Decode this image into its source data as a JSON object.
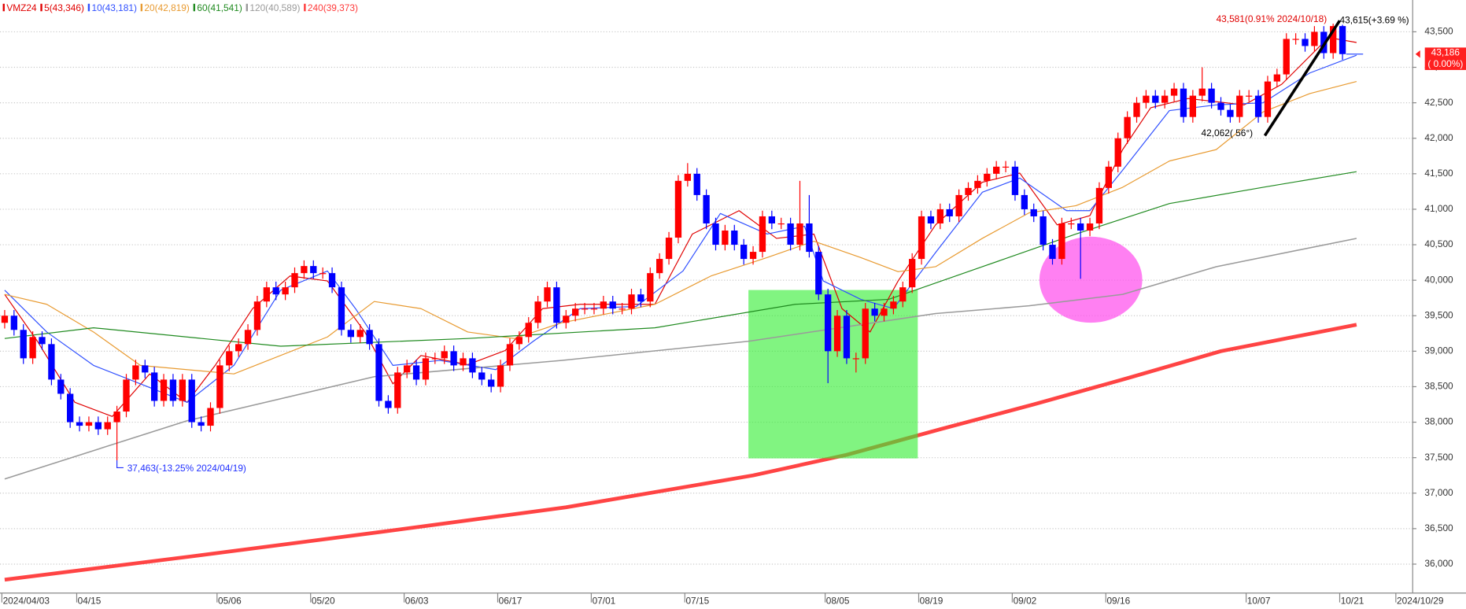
{
  "chart_data": {
    "type": "candlestick",
    "title": "VMZ24",
    "title_color": "#e00000",
    "up_color": "#ff0000",
    "down_color": "#0000ff",
    "xlim": [
      -0.5,
      150.5
    ],
    "ylim": [
      35592,
      43948
    ],
    "grid": true,
    "xticks": [
      {
        "value": 0,
        "label": "2024/04/03"
      },
      {
        "value": 8,
        "label": "04/15"
      },
      {
        "value": 23,
        "label": "05/06"
      },
      {
        "value": 33,
        "label": "05/20"
      },
      {
        "value": 43,
        "label": "06/03"
      },
      {
        "value": 53,
        "label": "06/17"
      },
      {
        "value": 63,
        "label": "07/01"
      },
      {
        "value": 73,
        "label": "07/15"
      },
      {
        "value": 88,
        "label": "08/05"
      },
      {
        "value": 98,
        "label": "08/19"
      },
      {
        "value": 108,
        "label": "09/02"
      },
      {
        "value": 118,
        "label": "09/16"
      },
      {
        "value": 133,
        "label": "10/07"
      },
      {
        "value": 143,
        "label": "10/21"
      },
      {
        "value": 149,
        "label": "2024/10/29"
      }
    ],
    "yticks": [
      {
        "value": 36000,
        "label": "36,000"
      },
      {
        "value": 36500,
        "label": "36,500"
      },
      {
        "value": 37000,
        "label": "37,000"
      },
      {
        "value": 37500,
        "label": "37,500"
      },
      {
        "value": 38000,
        "label": "38,000"
      },
      {
        "value": 38500,
        "label": "38,500"
      },
      {
        "value": 39000,
        "label": "39,000"
      },
      {
        "value": 39500,
        "label": "39,500"
      },
      {
        "value": 40000,
        "label": "40,000"
      },
      {
        "value": 40500,
        "label": "40,500"
      },
      {
        "value": 41000,
        "label": "41,000"
      },
      {
        "value": 41500,
        "label": "41,500"
      },
      {
        "value": 42000,
        "label": "42,000"
      },
      {
        "value": 42500,
        "label": "42,500"
      },
      {
        "value": 43000,
        "label": "43,000"
      },
      {
        "value": 43500,
        "label": "43,500"
      }
    ],
    "open": [
      39400,
      39500,
      39300,
      38900,
      39200,
      39100,
      38600,
      38400,
      38000,
      37950,
      38000,
      37900,
      38000,
      38150,
      38600,
      38800,
      38700,
      38300,
      38600,
      38300,
      38600,
      38000,
      37950,
      38200,
      38800,
      39000,
      39100,
      39300,
      39700,
      39900,
      39800,
      39900,
      40100,
      40200,
      40100,
      40100,
      39900,
      39300,
      39200,
      39300,
      39100,
      38300,
      38200,
      38700,
      38800,
      38600,
      38900,
      38900,
      39000,
      38800,
      38900,
      38700,
      38600,
      38500,
      38800,
      39100,
      39200,
      39400,
      39700,
      39900,
      39400,
      39500,
      39600,
      39600,
      39600,
      39700,
      39600,
      39600,
      39800,
      39700,
      40100,
      40300,
      40600,
      41400,
      41500,
      41200,
      40800,
      40500,
      40700,
      40500,
      40300,
      40400,
      40900,
      40800,
      40800,
      40500,
      40800,
      40400,
      39800,
      39000,
      39500,
      38900,
      38900,
      39600,
      39500,
      39600,
      39700,
      39900,
      40300,
      40900,
      40800,
      41000,
      40900,
      41200,
      41300,
      41400,
      41500,
      41600,
      41600,
      41200,
      41000,
      40900,
      40500,
      40300,
      40800,
      40800,
      40700,
      40800,
      41300,
      41600,
      42000,
      42300,
      42500,
      42600,
      42500,
      42600,
      42700,
      42300,
      42600,
      42700,
      42500,
      42400,
      42300,
      42600,
      42600,
      42300,
      42800,
      42900,
      43400,
      43400,
      43300,
      43500,
      43200,
      43581
    ],
    "high": [
      39580,
      39580,
      39380,
      39280,
      39280,
      39180,
      38680,
      38480,
      38080,
      38080,
      38080,
      38080,
      38230,
      38680,
      38880,
      38880,
      38780,
      38680,
      38680,
      38680,
      38680,
      38080,
      38280,
      38880,
      39080,
      39180,
      39380,
      39780,
      39980,
      39980,
      39980,
      40180,
      40280,
      40280,
      40180,
      40180,
      39980,
      39380,
      39380,
      39380,
      39180,
      38380,
      38780,
      38880,
      38880,
      38980,
      38980,
      39080,
      39080,
      38980,
      38980,
      38780,
      38680,
      38880,
      39180,
      39280,
      39480,
      39780,
      39980,
      39980,
      39580,
      39680,
      39680,
      39680,
      39780,
      39780,
      39680,
      39880,
      39880,
      40180,
      40380,
      40680,
      41480,
      41650,
      41580,
      41280,
      40880,
      40780,
      40780,
      40580,
      40480,
      40980,
      40980,
      40880,
      40880,
      41400,
      41200,
      40480,
      39880,
      39580,
      39580,
      38980,
      39680,
      39680,
      39680,
      39780,
      39980,
      40380,
      40980,
      40980,
      41080,
      41080,
      41280,
      41380,
      41480,
      41580,
      41680,
      41680,
      41680,
      41280,
      41080,
      40980,
      40580,
      40880,
      40880,
      40880,
      40880,
      41380,
      41680,
      42080,
      42380,
      42580,
      42680,
      42680,
      42680,
      42780,
      42780,
      42680,
      43000,
      42780,
      42580,
      42480,
      42680,
      42680,
      42680,
      42880,
      42980,
      43480,
      43480,
      43480,
      43580,
      43580,
      43615,
      43600
    ],
    "low": [
      39320,
      39220,
      38820,
      38820,
      39020,
      38520,
      38320,
      37920,
      37870,
      37870,
      37820,
      37820,
      37463,
      38070,
      38520,
      38620,
      38220,
      38220,
      38220,
      38220,
      37920,
      37870,
      37870,
      38120,
      38720,
      38920,
      39020,
      39220,
      39620,
      39720,
      39720,
      39820,
      40020,
      40020,
      40020,
      39820,
      39220,
      39120,
      39120,
      39020,
      38220,
      38120,
      38120,
      38620,
      38520,
      38520,
      38820,
      38820,
      38720,
      38720,
      38620,
      38520,
      38420,
      38420,
      38720,
      39020,
      39120,
      39320,
      39620,
      39320,
      39320,
      39420,
      39520,
      39520,
      39520,
      39520,
      39520,
      39520,
      39620,
      39620,
      40020,
      40220,
      40520,
      41320,
      41120,
      40720,
      40420,
      40420,
      40420,
      40220,
      40220,
      40320,
      40720,
      40720,
      40420,
      40420,
      40320,
      39720,
      38550,
      38920,
      38820,
      38700,
      38820,
      39420,
      39420,
      39520,
      39620,
      39820,
      40220,
      40720,
      40720,
      40820,
      40820,
      41120,
      41220,
      41320,
      41420,
      41520,
      41120,
      40920,
      40820,
      40420,
      40220,
      40220,
      40720,
      40020,
      40620,
      40720,
      41220,
      41520,
      41920,
      42220,
      42420,
      42420,
      42420,
      42520,
      42220,
      42220,
      42520,
      42420,
      42320,
      42220,
      42220,
      42520,
      42220,
      42220,
      42720,
      42820,
      43320,
      43220,
      43220,
      43120,
      43120,
      43106
    ],
    "close": [
      39500,
      39300,
      38900,
      39200,
      39100,
      38600,
      38400,
      38000,
      37950,
      38000,
      37900,
      38000,
      38150,
      38600,
      38800,
      38700,
      38300,
      38600,
      38300,
      38600,
      38000,
      37950,
      38200,
      38800,
      39000,
      39100,
      39300,
      39700,
      39900,
      39800,
      39900,
      40100,
      40200,
      40100,
      40100,
      39900,
      39300,
      39200,
      39300,
      39100,
      38300,
      38200,
      38700,
      38800,
      38600,
      38900,
      38900,
      39000,
      38800,
      38900,
      38700,
      38600,
      38500,
      38800,
      39100,
      39200,
      39400,
      39700,
      39900,
      39400,
      39500,
      39600,
      39600,
      39600,
      39700,
      39600,
      39600,
      39800,
      39700,
      40100,
      40300,
      40600,
      41400,
      41500,
      41200,
      40800,
      40500,
      40700,
      40500,
      40300,
      40400,
      40900,
      40800,
      40800,
      40500,
      40800,
      40400,
      39800,
      39000,
      39500,
      38900,
      38900,
      39600,
      39500,
      39600,
      39700,
      39900,
      40300,
      40900,
      40800,
      41000,
      40900,
      41200,
      41300,
      41400,
      41500,
      41600,
      41600,
      41200,
      41000,
      40900,
      40500,
      40300,
      40800,
      40800,
      40700,
      40800,
      41300,
      41600,
      42000,
      42300,
      42500,
      42600,
      42500,
      42600,
      42700,
      42300,
      42600,
      42700,
      42500,
      42400,
      42300,
      42600,
      42600,
      42300,
      42800,
      42900,
      43400,
      43400,
      43300,
      43500,
      43200,
      43581,
      43186
    ],
    "series": [
      {
        "name": "5(43,346)",
        "color": "#e00000",
        "width": 1,
        "x": [
          0,
          3.5,
          7.5,
          11.5,
          15.5,
          19.5,
          22.5,
          26.5,
          30.5,
          34.5,
          38.5,
          41.5,
          44.5,
          49.5,
          53.5,
          57.5,
          61.5,
          69.5,
          73.5,
          78.5,
          82.5,
          86.5,
          89.5,
          92.5,
          95.5,
          99.5,
          104.5,
          108.5,
          112.5,
          116,
          119.5,
          122.5,
          126.5,
          132.5,
          136.5,
          141.5,
          144.5
        ],
        "values": [
          39800,
          39140,
          38280,
          38080,
          38680,
          38280,
          38800,
          39600,
          40060,
          39990,
          39270,
          38540,
          38940,
          38810,
          39010,
          39600,
          39660,
          39660,
          40650,
          40980,
          40590,
          40650,
          39600,
          39270,
          39990,
          40780,
          41380,
          41510,
          40780,
          40910,
          41840,
          42430,
          42560,
          42470,
          42760,
          43420,
          43350
        ]
      },
      {
        "name": "10(43,181)",
        "color": "#3050ff",
        "width": 1,
        "x": [
          0,
          4.5,
          9.5,
          14.5,
          19.5,
          24.5,
          29.5,
          34.5,
          37.5,
          41.5,
          46.5,
          52.5,
          56.5,
          61.5,
          67.5,
          72.5,
          76.5,
          81.5,
          85.5,
          87.5,
          91.5,
          95,
          99.5,
          104.5,
          108.5,
          113.5,
          116,
          119.5,
          124.5,
          129.5,
          134.5,
          139.5,
          144.5
        ],
        "values": [
          39860,
          39270,
          38800,
          38540,
          38280,
          38800,
          39860,
          40130,
          39600,
          38800,
          38870,
          38740,
          39140,
          39600,
          39630,
          40130,
          40940,
          40650,
          40760,
          39990,
          39730,
          39600,
          40390,
          41240,
          41440,
          40980,
          40980,
          41550,
          42390,
          42470,
          42500,
          42920,
          43170
        ]
      },
      {
        "name": "20(42,819)",
        "color": "#e89a30",
        "width": 1,
        "x": [
          0,
          4.5,
          9.5,
          14.5,
          24.5,
          34.5,
          39.5,
          44.5,
          49.5,
          54.5,
          59.5,
          64.5,
          69.5,
          75.5,
          81.5,
          86.5,
          91.5,
          95.5,
          99.5,
          104.5,
          109.5,
          114.5,
          119.5,
          124.5,
          129.5,
          134.5,
          139.5,
          144.5
        ],
        "values": [
          39800,
          39660,
          39270,
          38800,
          38680,
          39200,
          39700,
          39600,
          39270,
          39180,
          39400,
          39530,
          39660,
          40060,
          40320,
          40550,
          40320,
          40120,
          40190,
          40590,
          40950,
          41050,
          41310,
          41680,
          41840,
          42370,
          42630,
          42800
        ]
      },
      {
        "name": "60(41,541)",
        "color": "#1f8a1f",
        "width": 1,
        "x": [
          0,
          9.5,
          29.5,
          49.5,
          69.5,
          84.5,
          94.5,
          104.5,
          114.5,
          124.5,
          134.5,
          144.5
        ],
        "values": [
          39180,
          39330,
          39070,
          39180,
          39330,
          39660,
          39730,
          40190,
          40650,
          41080,
          41310,
          41530
        ]
      },
      {
        "name": "120(40,589)",
        "color": "#9a9a9a",
        "width": 1.3,
        "x": [
          0,
          19.5,
          39.5,
          59.5,
          79.5,
          99.5,
          109.5,
          119.5,
          129.5,
          144.5
        ],
        "values": [
          37200,
          38020,
          38640,
          38870,
          39140,
          39530,
          39640,
          39800,
          40190,
          40590
        ]
      },
      {
        "name": "240(39,373)",
        "color": "#ff3a3a",
        "width": 4,
        "x": [
          0,
          20,
          40,
          60,
          80,
          90,
          100,
          110,
          120,
          130,
          144.5
        ],
        "values": [
          35780,
          36110,
          36450,
          36800,
          37250,
          37540,
          37900,
          38250,
          38620,
          39000,
          39373
        ]
      }
    ],
    "annotations": [
      "43,581(0.91% 2024/10/18)",
      "43,615(+3.69 %)",
      "42,062( 56°)",
      "37,463(-13.25% 2024/04/19)"
    ],
    "last_price": {
      "value": 43186,
      "label": "43,186",
      "change": "( 0.00%)",
      "color": "#ff2020"
    }
  }
}
